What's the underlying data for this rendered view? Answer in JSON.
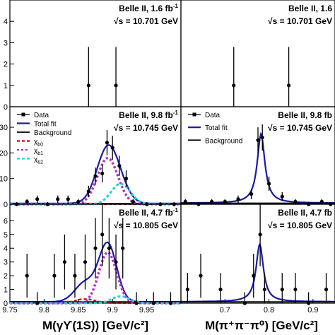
{
  "figure": {
    "xlabel_left": "M(γϒ(1S)) [GeV/c²]",
    "xlabel_right": "M(π⁺π⁻π⁰) [GeV/c²]"
  },
  "colors": {
    "data": "#000000",
    "total_fit": "#1a1aa6",
    "background": "#000000",
    "chi_b0": "#cc0000",
    "chi_b1": "#b030c8",
    "chi_b2": "#22d0e0"
  },
  "chart_data": [
    {
      "id": "left-top",
      "type": "scatter",
      "label_line1": "Belle II, 1.6 fb",
      "label_line1_sup": "-1",
      "label_line2": "√s = 10.701 GeV",
      "xlim": [
        9.75,
        10.0
      ],
      "ylim": [
        0,
        5
      ],
      "y_ticks": [
        0,
        1,
        2,
        3,
        4
      ],
      "x_ticks": [],
      "legend": [],
      "data": [
        {
          "x": 9.865,
          "y": 1,
          "err": 1.8
        },
        {
          "x": 9.905,
          "y": 1,
          "err": 1.8
        }
      ],
      "curves": []
    },
    {
      "id": "right-top",
      "type": "scatter",
      "label_line1": "Belle II, 1.6",
      "label_line1_sup": "",
      "label_line2": "√s = 10.701 GeV",
      "xlim": [
        0.6,
        0.95
      ],
      "ylim": [
        0,
        5
      ],
      "y_ticks": [],
      "x_ticks": [],
      "legend": [],
      "data": [
        {
          "x": 0.72,
          "y": 1,
          "err": 1.8
        },
        {
          "x": 0.845,
          "y": 1,
          "err": 1.8
        }
      ],
      "curves": []
    },
    {
      "id": "left-mid",
      "type": "scatter",
      "label_line1": "Belle II, 9.8 fb",
      "label_line1_sup": "-1",
      "label_line2": "√s = 10.745 GeV",
      "xlim": [
        9.75,
        10.0
      ],
      "ylim": [
        0,
        38
      ],
      "y_ticks": [
        0,
        10,
        20,
        30
      ],
      "x_ticks": [],
      "legend": [
        {
          "label": "Data",
          "kind": "data"
        },
        {
          "label": "Total fit",
          "kind": "total"
        },
        {
          "label": "Background",
          "kind": "bkg"
        },
        {
          "label": "χb0",
          "kind": "chi_b0"
        },
        {
          "label": "χb1",
          "kind": "chi_b1"
        },
        {
          "label": "χb2",
          "kind": "chi_b2"
        }
      ],
      "data": [
        {
          "x": 9.76,
          "y": 0,
          "err": 0.8
        },
        {
          "x": 9.775,
          "y": 1,
          "err": 1.0
        },
        {
          "x": 9.79,
          "y": 2,
          "err": 1.4
        },
        {
          "x": 9.805,
          "y": 0,
          "err": 0.8
        },
        {
          "x": 9.82,
          "y": 2,
          "err": 1.4
        },
        {
          "x": 9.835,
          "y": 2,
          "err": 1.4
        },
        {
          "x": 9.85,
          "y": 1,
          "err": 1.0
        },
        {
          "x": 9.865,
          "y": 5,
          "err": 2.2
        },
        {
          "x": 9.875,
          "y": 11,
          "err": 3.3
        },
        {
          "x": 9.885,
          "y": 12,
          "err": 3.5
        },
        {
          "x": 9.892,
          "y": 24,
          "err": 4.9
        },
        {
          "x": 9.9,
          "y": 22,
          "err": 4.7
        },
        {
          "x": 9.91,
          "y": 15,
          "err": 3.9
        },
        {
          "x": 9.92,
          "y": 10,
          "err": 3.2
        },
        {
          "x": 9.93,
          "y": 1,
          "err": 1.0
        },
        {
          "x": 9.95,
          "y": 0,
          "err": 0.8
        },
        {
          "x": 9.97,
          "y": 0,
          "err": 0.8
        },
        {
          "x": 9.99,
          "y": 0,
          "err": 0.8
        }
      ],
      "curves": [
        {
          "kind": "total",
          "peaks": [
            {
              "mu": 9.893,
              "sigma": 0.016,
              "amp": 21.5
            },
            {
              "mu": 9.912,
              "sigma": 0.014,
              "amp": 3.0
            }
          ],
          "base": 0.3
        },
        {
          "kind": "bkg",
          "peaks": [],
          "base": 0.3
        },
        {
          "kind": "chi_b0",
          "peaks": [
            {
              "mu": 9.86,
              "sigma": 0.015,
              "amp": 0.3
            }
          ],
          "base": 0
        },
        {
          "kind": "chi_b1",
          "peaks": [
            {
              "mu": 9.893,
              "sigma": 0.015,
              "amp": 18
            }
          ],
          "base": 0
        },
        {
          "kind": "chi_b2",
          "peaks": [
            {
              "mu": 9.912,
              "sigma": 0.014,
              "amp": 8
            }
          ],
          "base": 0
        }
      ]
    },
    {
      "id": "right-mid",
      "type": "scatter",
      "label_line1": "Belle II, 9.8 fb",
      "label_line1_sup": "",
      "label_line2": "√s = 10.745 GeV",
      "xlim": [
        0.6,
        0.95
      ],
      "ylim": [
        0,
        38
      ],
      "y_ticks": [],
      "x_ticks": [],
      "legend": [
        {
          "label": "Data",
          "kind": "data"
        },
        {
          "label": "Total fit",
          "kind": "total"
        },
        {
          "label": "Background",
          "kind": "bkg"
        }
      ],
      "data": [
        {
          "x": 0.61,
          "y": 1,
          "err": 1.0
        },
        {
          "x": 0.64,
          "y": 0,
          "err": 0.8
        },
        {
          "x": 0.67,
          "y": 1,
          "err": 1.0
        },
        {
          "x": 0.7,
          "y": 1,
          "err": 1.0
        },
        {
          "x": 0.73,
          "y": 2,
          "err": 1.4
        },
        {
          "x": 0.76,
          "y": 4,
          "err": 2.0
        },
        {
          "x": 0.775,
          "y": 25,
          "err": 5.0
        },
        {
          "x": 0.785,
          "y": 26,
          "err": 5.1
        },
        {
          "x": 0.8,
          "y": 8,
          "err": 2.8
        },
        {
          "x": 0.83,
          "y": 3,
          "err": 1.7
        },
        {
          "x": 0.86,
          "y": 1,
          "err": 1.0
        },
        {
          "x": 0.89,
          "y": 0,
          "err": 0.8
        },
        {
          "x": 0.92,
          "y": 1,
          "err": 1.0
        },
        {
          "x": 0.94,
          "y": 0,
          "err": 0.8
        }
      ],
      "curves": [
        {
          "kind": "total",
          "peaks": [
            {
              "mu": 0.782,
              "sigma": 0.0105,
              "amp": 27,
              "type": "lorentz"
            }
          ],
          "base": 0.4
        },
        {
          "kind": "bkg",
          "peaks": [],
          "base": 0.4
        }
      ]
    },
    {
      "id": "left-bot",
      "type": "scatter",
      "label_line1": "Belle II, 4.7 fb",
      "label_line1_sup": "-1",
      "label_line2": "√s = 10.805 GeV",
      "xlim": [
        9.75,
        10.0
      ],
      "ylim": [
        0,
        7.2
      ],
      "y_ticks": [
        0,
        1,
        2,
        3,
        4,
        5,
        6
      ],
      "x_ticks": [
        9.75,
        9.8,
        9.85,
        9.9,
        9.95
      ],
      "legend": [],
      "data": [
        {
          "x": 9.775,
          "y": 2,
          "err": 1.6
        },
        {
          "x": 9.79,
          "y": 0,
          "err": 0.8
        },
        {
          "x": 9.815,
          "y": 2,
          "err": 1.6
        },
        {
          "x": 9.83,
          "y": 3,
          "err": 2.0
        },
        {
          "x": 9.845,
          "y": 2,
          "err": 1.6
        },
        {
          "x": 9.86,
          "y": 3,
          "err": 2.0
        },
        {
          "x": 9.875,
          "y": 4,
          "err": 2.2
        },
        {
          "x": 9.885,
          "y": 5,
          "err": 2.3
        },
        {
          "x": 9.895,
          "y": 4,
          "err": 2.2
        },
        {
          "x": 9.905,
          "y": 3,
          "err": 2.0
        },
        {
          "x": 9.915,
          "y": 4,
          "err": 2.2
        },
        {
          "x": 9.935,
          "y": 0,
          "err": 0.8
        },
        {
          "x": 9.96,
          "y": 0,
          "err": 0.8
        },
        {
          "x": 9.985,
          "y": 0,
          "err": 0.8
        }
      ],
      "curves": [
        {
          "kind": "total",
          "peaks": [
            {
              "mu": 9.893,
              "sigma": 0.013,
              "amp": 4.2
            },
            {
              "mu": 9.86,
              "sigma": 0.015,
              "amp": 1.4
            }
          ],
          "base": 0.1
        },
        {
          "kind": "bkg",
          "peaks": [],
          "base": 0.1
        },
        {
          "kind": "chi_b0",
          "peaks": [
            {
              "mu": 9.86,
              "sigma": 0.015,
              "amp": 0.3
            }
          ],
          "base": 0
        },
        {
          "kind": "chi_b1",
          "peaks": [
            {
              "mu": 9.893,
              "sigma": 0.013,
              "amp": 3.7
            }
          ],
          "base": 0
        },
        {
          "kind": "chi_b2",
          "peaks": [
            {
              "mu": 9.912,
              "sigma": 0.013,
              "amp": 0.5
            }
          ],
          "base": 0
        }
      ]
    },
    {
      "id": "right-bot",
      "type": "scatter",
      "label_line1": "Belle II, 4.7 fb",
      "label_line1_sup": "",
      "label_line2": "√s = 10.805 GeV",
      "xlim": [
        0.6,
        0.95
      ],
      "ylim": [
        0,
        7.2
      ],
      "y_ticks": [],
      "x_ticks": [
        0.7,
        0.8,
        0.9
      ],
      "legend": [],
      "data": [
        {
          "x": 0.615,
          "y": 1,
          "err": 1.2
        },
        {
          "x": 0.645,
          "y": 2,
          "err": 1.6
        },
        {
          "x": 0.69,
          "y": 1,
          "err": 1.2
        },
        {
          "x": 0.745,
          "y": 0,
          "err": 0.8
        },
        {
          "x": 0.765,
          "y": 2,
          "err": 1.6
        },
        {
          "x": 0.78,
          "y": 5,
          "err": 2.3
        },
        {
          "x": 0.79,
          "y": 1,
          "err": 1.2
        },
        {
          "x": 0.83,
          "y": 1,
          "err": 1.2
        },
        {
          "x": 0.86,
          "y": 1,
          "err": 1.2
        },
        {
          "x": 0.89,
          "y": 0,
          "err": 0.8
        },
        {
          "x": 0.93,
          "y": 1,
          "err": 1.2
        }
      ],
      "curves": [
        {
          "kind": "total",
          "peaks": [
            {
              "mu": 0.779,
              "sigma": 0.01,
              "amp": 4.2,
              "type": "lorentz"
            }
          ],
          "base": 0.1
        },
        {
          "kind": "bkg",
          "peaks": [],
          "base": 0.1
        }
      ]
    }
  ]
}
